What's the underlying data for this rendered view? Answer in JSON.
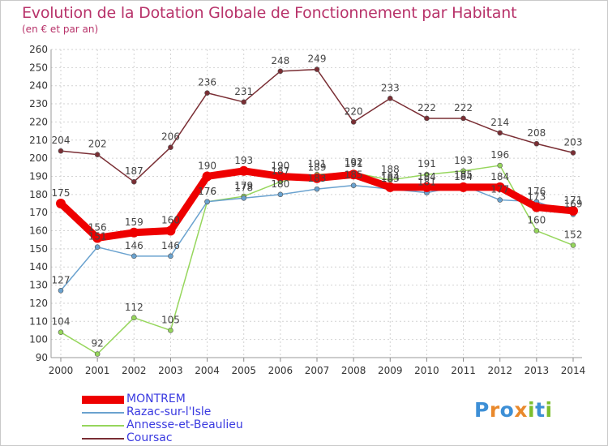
{
  "title": "Evolution de la Dotation Globale de Fonctionnement par Habitant",
  "subtitle": "(en € et par an)",
  "brand": {
    "text": "Proxiti",
    "colors": [
      "#3d8fd6",
      "#e9892c",
      "#7cbe2e"
    ]
  },
  "colors": {
    "title": "#b8336a",
    "legend_text": "#3a3ae0",
    "axis": "#999999"
  },
  "chart_data": {
    "type": "line",
    "title": "Evolution de la Dotation Globale de Fonctionnement par Habitant",
    "subtitle": "(en € et par an)",
    "x": [
      2000,
      2001,
      2002,
      2003,
      2004,
      2005,
      2006,
      2007,
      2008,
      2009,
      2010,
      2011,
      2012,
      2013,
      2014
    ],
    "xlabel": "",
    "ylabel": "",
    "ylim": [
      90,
      260
    ],
    "yticks": [
      90,
      100,
      110,
      120,
      130,
      140,
      150,
      160,
      170,
      180,
      190,
      200,
      210,
      220,
      230,
      240,
      250,
      260
    ],
    "grid": true,
    "legend_position": "bottom-left",
    "series": [
      {
        "name": "MONTREM",
        "color": "#ee0000",
        "values": [
          175,
          156,
          159,
          160,
          190,
          193,
          190,
          189,
          191,
          184,
          184,
          184,
          184,
          173,
          171
        ]
      },
      {
        "name": "Razac-sur-l'Isle",
        "color": "#6aa2cf",
        "values": [
          127,
          151,
          146,
          146,
          176,
          178,
          180,
          183,
          185,
          183,
          181,
          185,
          177,
          176,
          169
        ]
      },
      {
        "name": "Annesse-et-Beaulieu",
        "color": "#96d65c",
        "values": [
          104,
          92,
          112,
          105,
          176,
          179,
          187,
          191,
          192,
          188,
          191,
          193,
          196,
          160,
          152
        ]
      },
      {
        "name": "Coursac",
        "color": "#7a2e34",
        "values": [
          204,
          202,
          187,
          206,
          236,
          231,
          248,
          249,
          220,
          233,
          222,
          222,
          214,
          208,
          203
        ]
      }
    ]
  },
  "legend": [
    {
      "label": "MONTREM",
      "color": "#ee0000"
    },
    {
      "label": "Razac-sur-l'Isle",
      "color": "#6aa2cf"
    },
    {
      "label": "Annesse-et-Beaulieu",
      "color": "#96d65c"
    },
    {
      "label": "Coursac",
      "color": "#7a2e34"
    }
  ]
}
